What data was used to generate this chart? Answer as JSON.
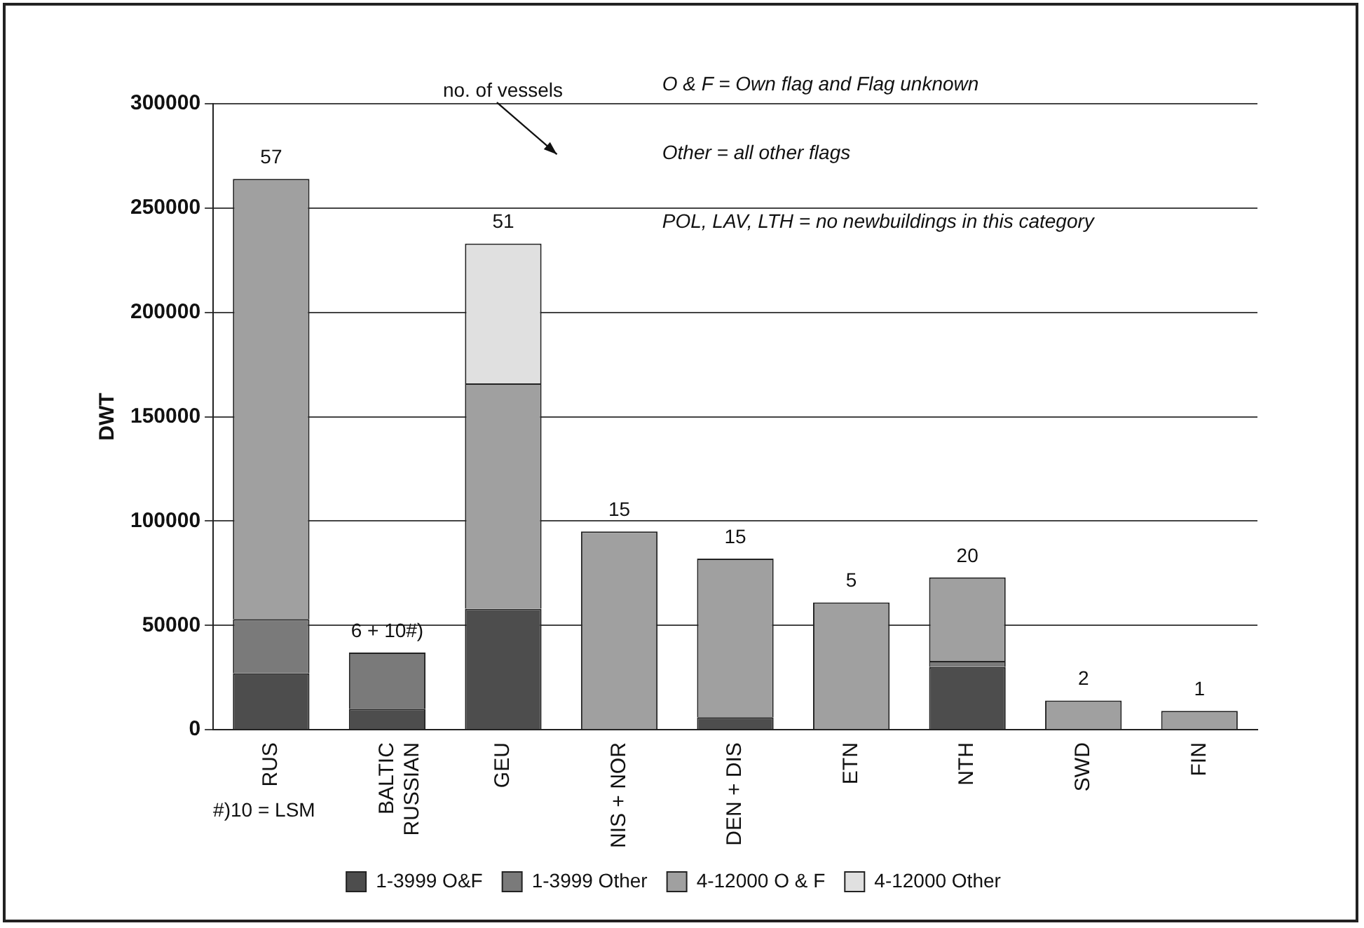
{
  "chart_data": {
    "type": "bar",
    "stacked": true,
    "ylabel": "DWT",
    "categories": [
      "RUS",
      "BALTIC\nRUSSIAN",
      "GEU",
      "NIS + NOR",
      "DEN + DIS",
      "ETN",
      "NTH",
      "SWD",
      "FIN"
    ],
    "series": [
      {
        "name": "1-3999 O&F",
        "color": "#4d4d4d",
        "values": [
          27000,
          10000,
          58000,
          0,
          6000,
          0,
          30000,
          0,
          0
        ]
      },
      {
        "name": "1-3999 Other",
        "color": "#7a7a7a",
        "values": [
          26000,
          27000,
          0,
          0,
          0,
          0,
          3000,
          0,
          0
        ]
      },
      {
        "name": "4-12000 O & F",
        "color": "#a0a0a0",
        "values": [
          211000,
          0,
          108000,
          95000,
          76000,
          61000,
          40000,
          14000,
          9000
        ]
      },
      {
        "name": "4-12000 Other",
        "color": "#e0e0e0",
        "values": [
          0,
          0,
          67000,
          0,
          0,
          0,
          0,
          0,
          0
        ]
      }
    ],
    "ylim": [
      0,
      300000
    ],
    "yticks": [
      0,
      50000,
      100000,
      150000,
      200000,
      250000,
      300000
    ],
    "grid": "y",
    "legend": "bottom",
    "annotations": [
      "O & F = Own flag and Flag unknown",
      "Other = all other flags",
      "POL, LAV, LTH = no newbuildings in this category",
      "no. of vessels",
      "#)10 = LSM",
      {
        "text": "57",
        "x": "RUS",
        "y": 264000
      },
      {
        "text": "6 + 10#)",
        "x": "BALTIC\nRUSSIAN",
        "y": 37000
      },
      {
        "text": "51",
        "x": "GEU",
        "y": 233000
      },
      {
        "text": "15",
        "x": "NIS + NOR",
        "y": 95000
      },
      {
        "text": "15",
        "x": "DEN + DIS",
        "y": 82000
      },
      {
        "text": "5",
        "x": "ETN",
        "y": 61000
      },
      {
        "text": "20",
        "x": "NTH",
        "y": 73000
      },
      {
        "text": "2",
        "x": "SWD",
        "y": 14000
      },
      {
        "text": "1",
        "x": "FIN",
        "y": 9000
      }
    ]
  }
}
